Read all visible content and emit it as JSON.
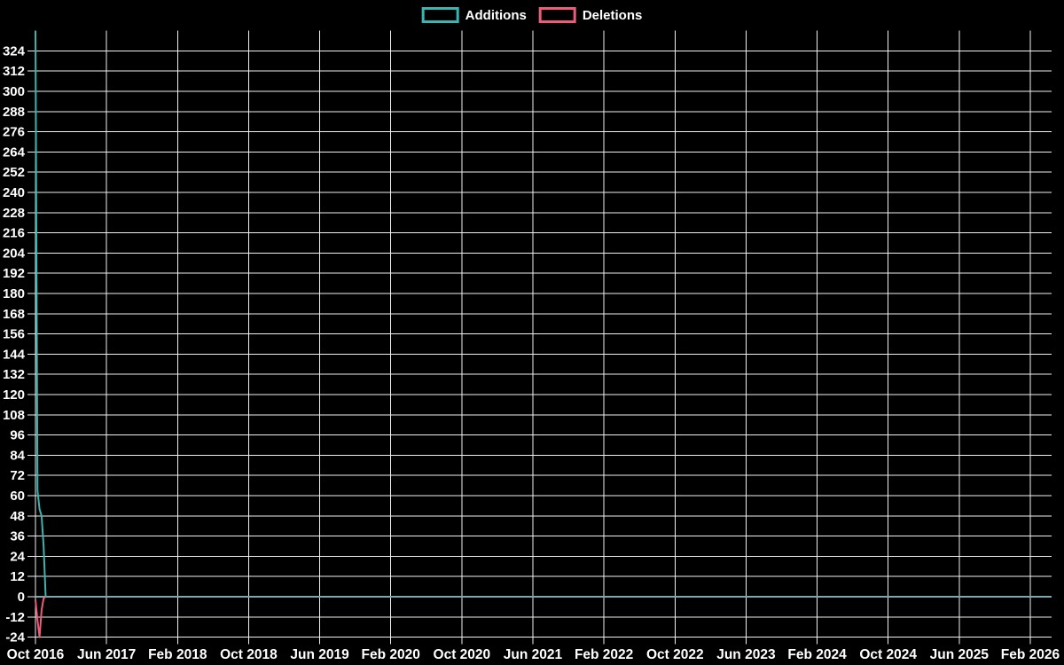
{
  "page": {
    "background_color": "#000000",
    "text_color": "#ffffff"
  },
  "legend": {
    "position": "top-center",
    "items": [
      {
        "label": "Additions",
        "color": "#3ab5b1"
      },
      {
        "label": "Deletions",
        "color": "#ee5c7c"
      }
    ]
  },
  "chart_data": {
    "type": "line",
    "title": "",
    "xlabel": "",
    "ylabel": "",
    "x_axis": {
      "kind": "time",
      "tick_labels": [
        "Oct 2016",
        "Jun 2017",
        "Feb 2018",
        "Oct 2018",
        "Jun 2019",
        "Feb 2020",
        "Oct 2020",
        "Jun 2021",
        "Feb 2022",
        "Oct 2022",
        "Jun 2023",
        "Feb 2024",
        "Oct 2024",
        "Jun 2025",
        "Feb 2026"
      ],
      "tick_interval_months": 8,
      "weeks_per_tick_interval": 34.76,
      "x_min_weeks": 0,
      "x_max_weeks": 497
    },
    "y_axis": {
      "min": -24,
      "max": 336,
      "step": 12,
      "tick_labels": [
        -24,
        -12,
        0,
        12,
        24,
        36,
        48,
        60,
        72,
        84,
        96,
        108,
        120,
        132,
        144,
        156,
        168,
        180,
        192,
        204,
        216,
        228,
        240,
        252,
        264,
        276,
        288,
        300,
        312,
        324
      ]
    },
    "grid": {
      "visible": true,
      "color": "#f0f0f0"
    },
    "zero_line": {
      "value": 0,
      "color": "#84a4ad",
      "from_week": 0,
      "to_week": 497,
      "note": "both series remain at 0 from late 2016 through Feb 2026"
    },
    "series": [
      {
        "name": "Additions",
        "color": "#3ab5b1",
        "line_width": 2,
        "points_weeks_vs_value": [
          [
            0,
            336
          ],
          [
            1,
            63
          ],
          [
            2,
            52
          ],
          [
            3,
            48
          ],
          [
            4,
            30
          ],
          [
            5,
            0
          ]
        ]
      },
      {
        "name": "Deletions",
        "color": "#ee5c7c",
        "line_width": 2,
        "points_weeks_vs_value": [
          [
            0,
            -2
          ],
          [
            1,
            -14
          ],
          [
            2,
            -24
          ],
          [
            3,
            -8
          ],
          [
            4,
            -1
          ],
          [
            5,
            0
          ]
        ]
      }
    ],
    "legend_entries": [
      "Additions",
      "Deletions"
    ]
  }
}
